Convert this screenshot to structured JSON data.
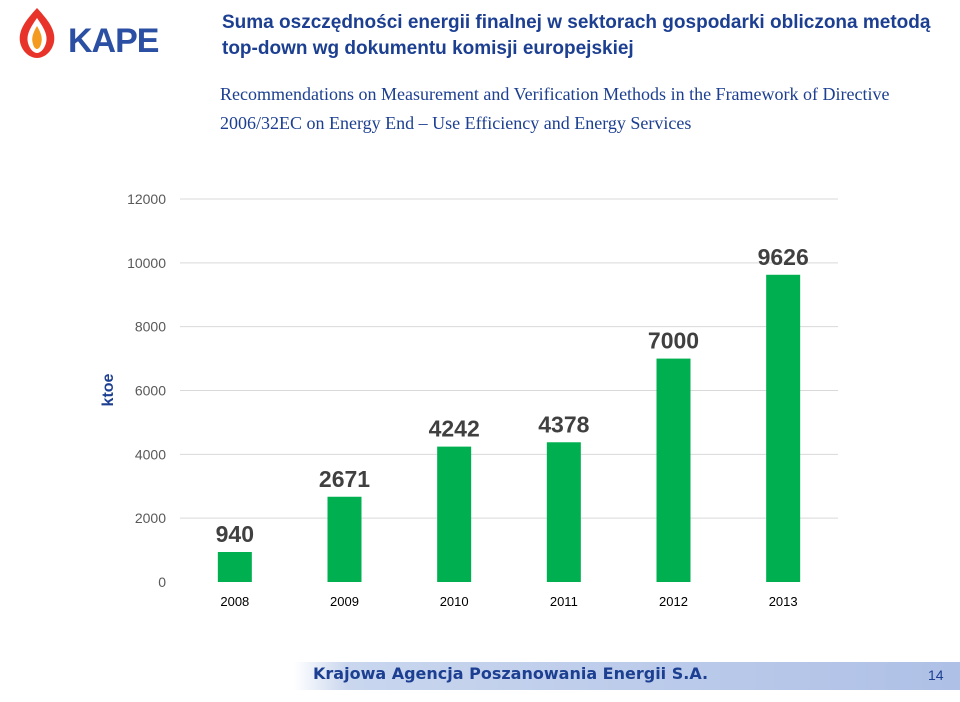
{
  "logo": {
    "text": "KAPE"
  },
  "header": {
    "title": "Suma oszczędności energii finalnej w sektorach gospodarki obliczona metodą top-down wg dokumentu komisji europejskiej",
    "subtitle": "Recommendations on Measurement and Verification Methods in the Framework of Directive 2006/32EC on Energy End – Use Efficiency and Energy Services"
  },
  "chart_data": {
    "type": "bar",
    "categories": [
      "2008",
      "2009",
      "2010",
      "2011",
      "2012",
      "2013"
    ],
    "values": [
      940,
      2671,
      4242,
      4378,
      7000,
      9626
    ],
    "data_labels": [
      "940",
      "2671",
      "4242",
      "4378",
      "7000",
      "9626"
    ],
    "ylabel": "ktoe",
    "xlabel": "",
    "ylim": [
      0,
      12000
    ],
    "yticks": [
      "0",
      "2000",
      "4000",
      "6000",
      "8000",
      "10000",
      "12000"
    ],
    "grid": true,
    "bar_color": "#00b050"
  },
  "footer": {
    "organization": "Krajowa Agencja Poszanowania Energii S.A.",
    "page_number": "14"
  }
}
